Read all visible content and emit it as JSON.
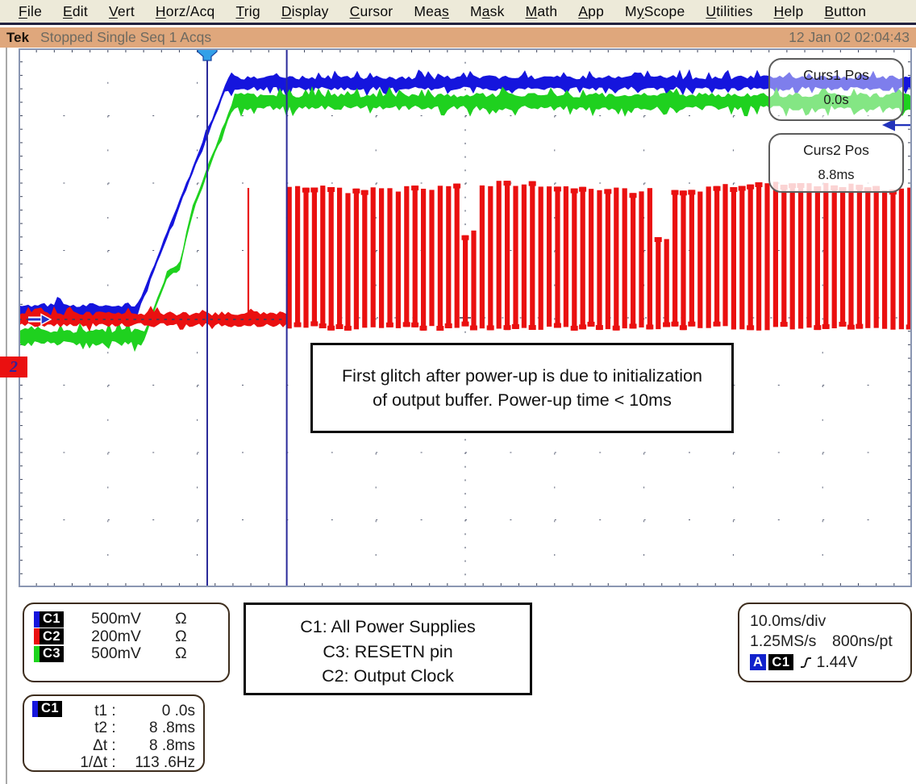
{
  "menu_bar": {
    "items": [
      {
        "label": "File",
        "mnemonic": 0
      },
      {
        "label": "Edit",
        "mnemonic": 0
      },
      {
        "label": "Vert",
        "mnemonic": 0
      },
      {
        "label": "Horz/Acq",
        "mnemonic": 0
      },
      {
        "label": "Trig",
        "mnemonic": 0
      },
      {
        "label": "Display",
        "mnemonic": 0
      },
      {
        "label": "Cursor",
        "mnemonic": 0
      },
      {
        "label": "Meas",
        "mnemonic": 3
      },
      {
        "label": "Mask",
        "mnemonic": 1
      },
      {
        "label": "Math",
        "mnemonic": 0
      },
      {
        "label": "App",
        "mnemonic": 0
      },
      {
        "label": "MyScope",
        "mnemonic": 1
      },
      {
        "label": "Utilities",
        "mnemonic": 0
      },
      {
        "label": "Help",
        "mnemonic": 0
      },
      {
        "label": "Button",
        "mnemonic": 0
      }
    ]
  },
  "status_bar": {
    "brand": "Tek",
    "status": "Stopped Single Seq 1 Acqs",
    "datetime": "12 Jan 02 02:04:43"
  },
  "cursor_popups": {
    "curs1": {
      "title": "Curs1 Pos",
      "value": "0.0s"
    },
    "curs2": {
      "title": "Curs2 Pos",
      "value": "8.8ms"
    }
  },
  "annotation": {
    "line1": "First glitch after power-up is due to initialization",
    "line2": "of output buffer. Power-up time < 10ms"
  },
  "channel_readouts": [
    {
      "name": "C1",
      "color": "#1515dd",
      "scale": "500mV",
      "coupling": "Ω"
    },
    {
      "name": "C2",
      "color": "#ea1010",
      "scale": "200mV",
      "coupling": "Ω"
    },
    {
      "name": "C3",
      "color": "#1cd41c",
      "scale": "500mV",
      "coupling": "Ω"
    }
  ],
  "signal_labels": {
    "lines": [
      "C1: All Power Supplies",
      "C3: RESETN pin",
      "C2: Output Clock"
    ]
  },
  "horizontal_readout": {
    "timebase": "10.0ms/div",
    "sample_rate": "1.25MS/s",
    "resolution": "800ns/pt",
    "trigger_mode": "A",
    "trigger_source": "C1",
    "trigger_level": "1.44V"
  },
  "cursor_readout": {
    "source": "C1",
    "source_color": "#1515dd",
    "rows": [
      {
        "label": "t1 :",
        "value": "0 .0s"
      },
      {
        "label": "t2 :",
        "value": "8 .8ms"
      },
      {
        "label": "Δt :",
        "value": "8 .8ms"
      },
      {
        "label": "1/Δt :",
        "value": "113 .6Hz"
      }
    ]
  },
  "left_marker": {
    "channel": "2"
  },
  "waveform": {
    "divisions": {
      "h": 10,
      "v": 8
    },
    "colors": {
      "c1": "#1515dd",
      "c2": "#ea1010",
      "c3": "#1fd11f",
      "cursor": "#2a2a99",
      "grid": "#3c445c",
      "frame": "#8a96b2"
    },
    "c1": {
      "low_div": 3.893,
      "high_div": 0.515,
      "ramp_start_div": 1.327,
      "ramp_end_div": 2.337
    },
    "c3": {
      "low_div": 4.287,
      "high_div": 0.79,
      "ramp_start_div": 1.399,
      "ramp_end_div": 2.41,
      "notch_x_div": 1.805,
      "notch_depth_div": 0.335
    },
    "c2": {
      "base_div": 4.024,
      "clock_start_div": 3.002,
      "clock_top_div": 2.012,
      "clock_bottom_div": 4.12,
      "glitch_x_div": 2.572,
      "glitch_top_div": 2.072,
      "pinch_divs": [
        4.98,
        7.17
      ]
    },
    "cursors": {
      "t1_div": 2.112,
      "t2_div": 3.002
    },
    "trigger_marker_div": 2.112,
    "right_arrow_y_div": 1.138
  }
}
